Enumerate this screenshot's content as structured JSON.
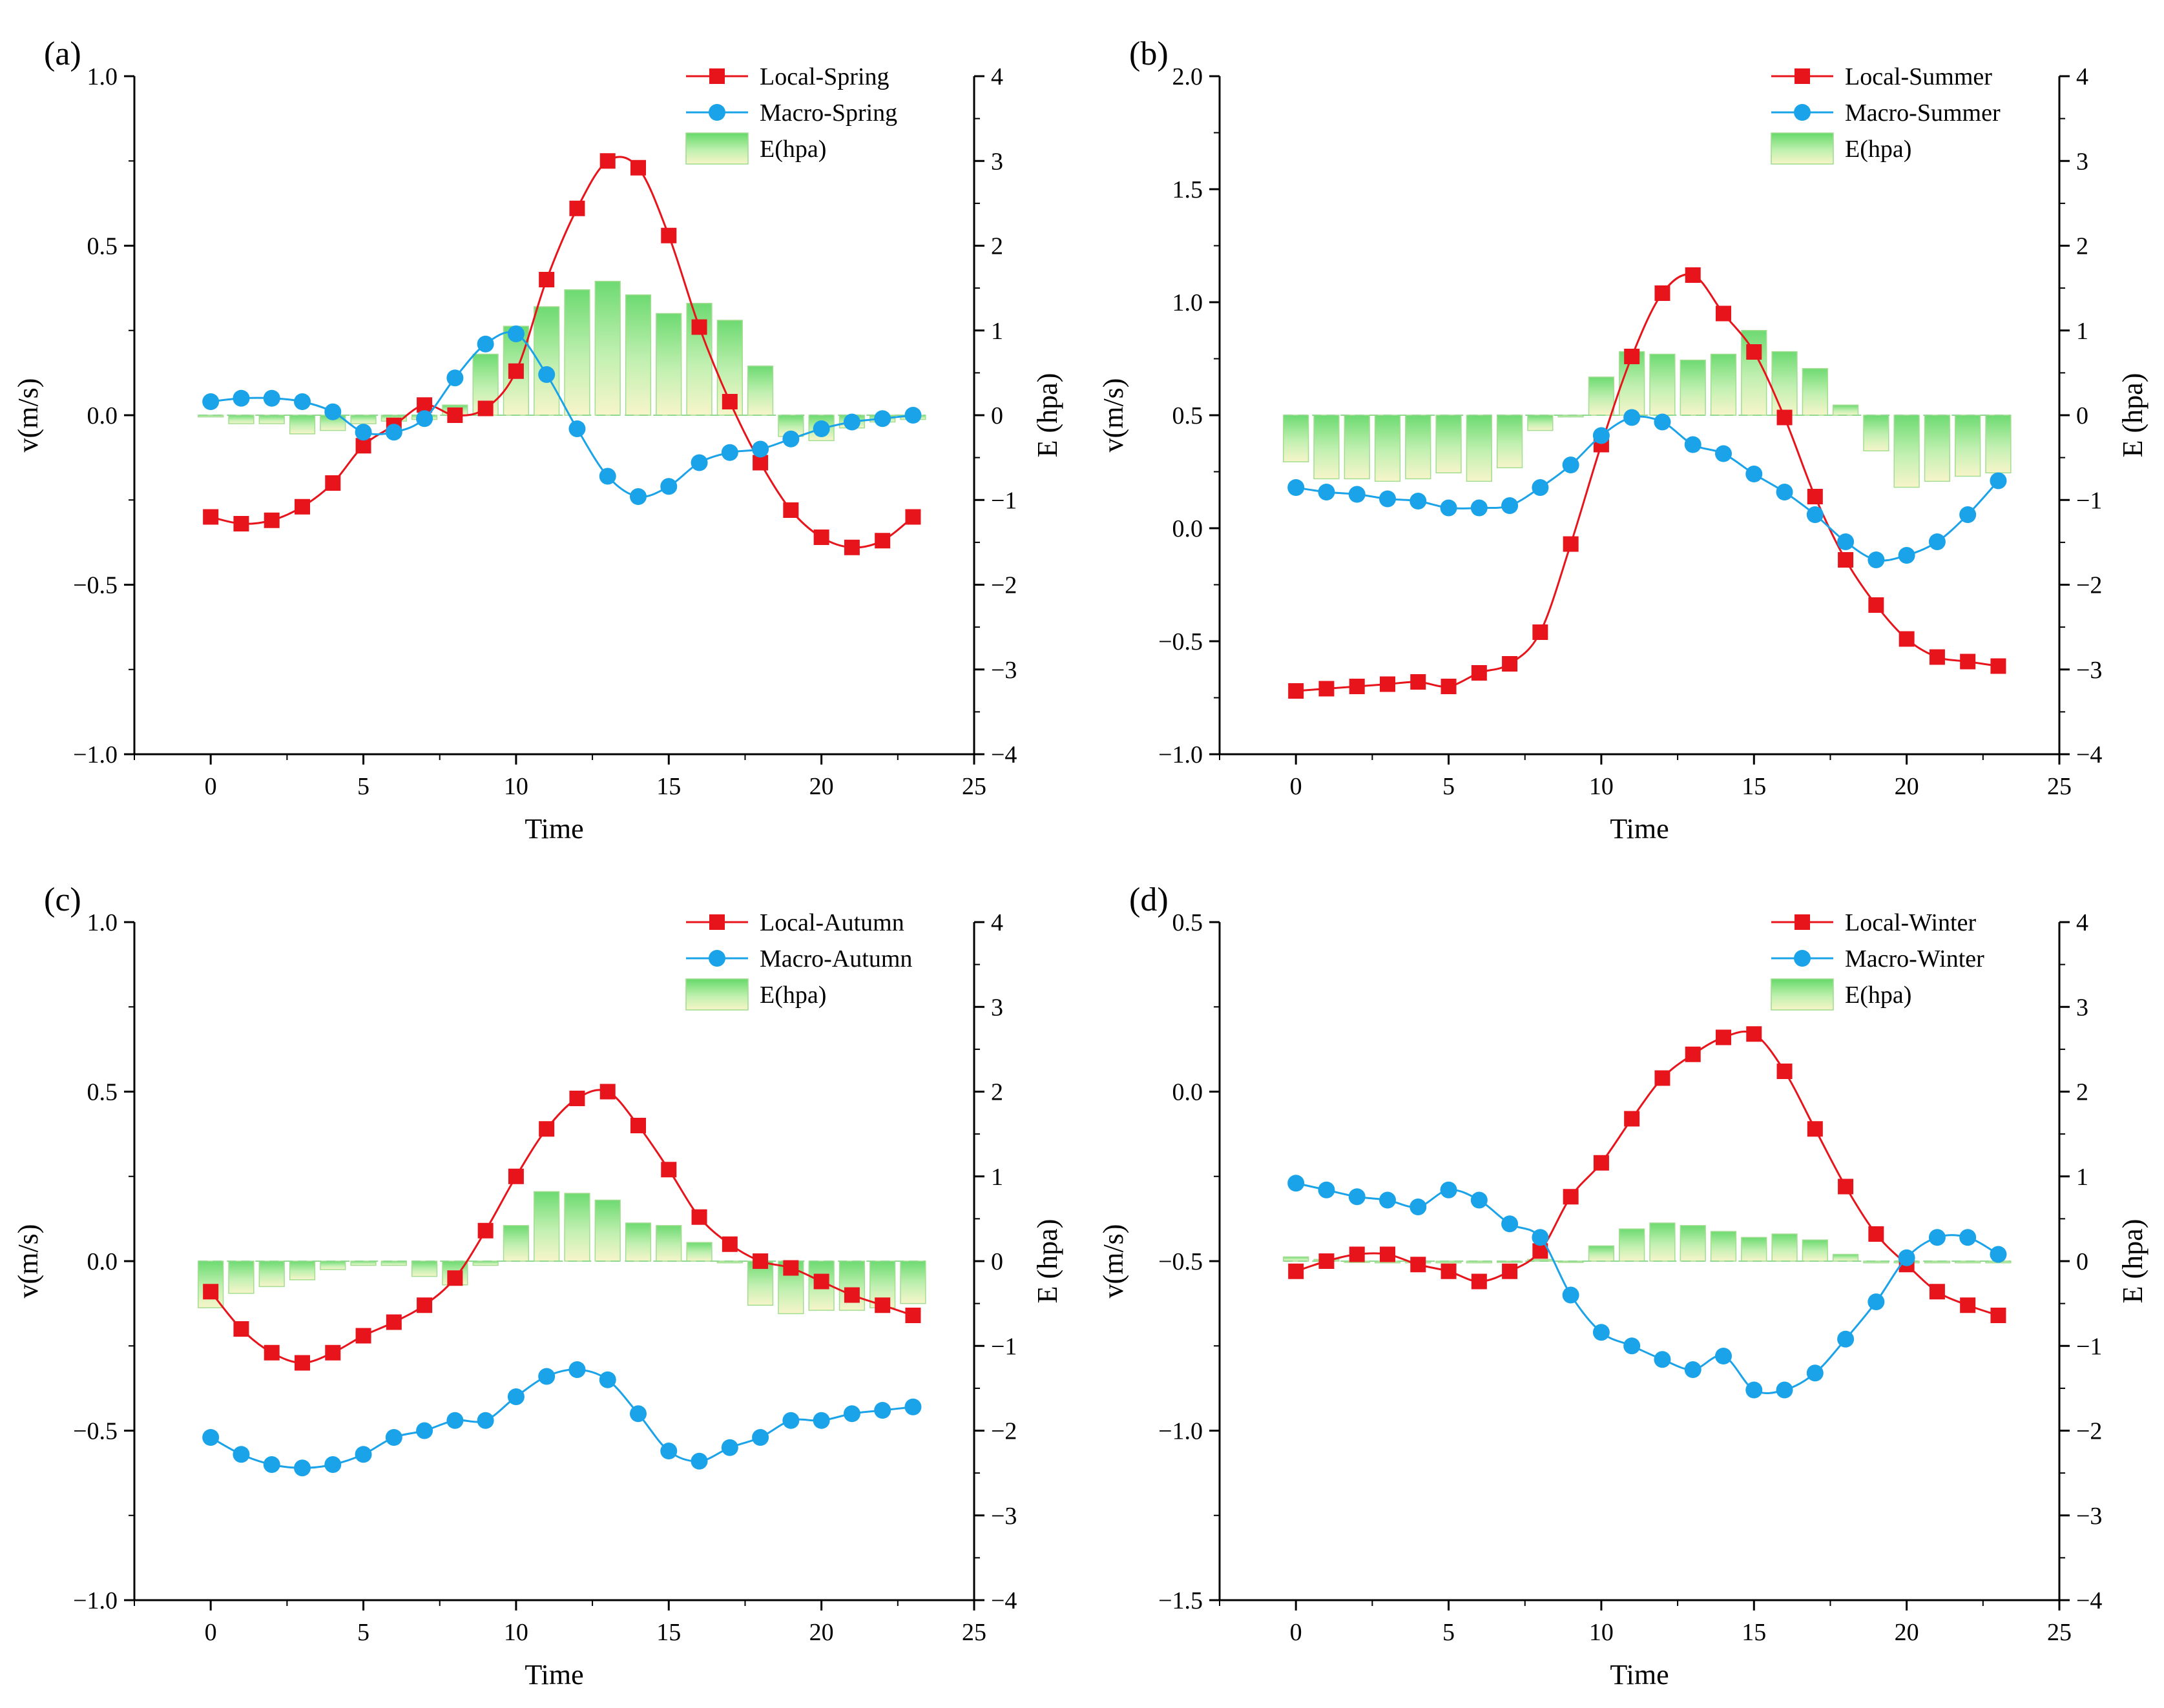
{
  "chart_data": [
    {
      "type": "line",
      "panel": "(a)",
      "xlabel": "Time",
      "ylabel": "v(m/s)",
      "y2label": "E (hpa)",
      "xlim": [
        -2.5,
        25
      ],
      "xticks": [
        0,
        5,
        10,
        15,
        20,
        25
      ],
      "ylim": [
        -1.0,
        1.0
      ],
      "yticks": [
        -1.0,
        -0.5,
        0.0,
        0.5,
        1.0
      ],
      "ytick_labels": [
        "−1.0",
        "−0.5",
        "0.0",
        "0.5",
        "1.0"
      ],
      "y2lim": [
        -4,
        4
      ],
      "y2ticks": [
        -4,
        -3,
        -2,
        -1,
        0,
        1,
        2,
        3,
        4
      ],
      "y2tick_labels": [
        "−4",
        "−3",
        "−2",
        "−1",
        "0",
        "1",
        "2",
        "3",
        "4"
      ],
      "bar_base": 0.0,
      "x": [
        0,
        1,
        2,
        3,
        4,
        5,
        6,
        7,
        8,
        9,
        10,
        11,
        12,
        13,
        14,
        15,
        16,
        17,
        18,
        19,
        20,
        21,
        22,
        23
      ],
      "series": [
        {
          "name": "Local-Spring",
          "color": "#e8141b",
          "marker": "square",
          "values": [
            -0.3,
            -0.32,
            -0.31,
            -0.27,
            -0.2,
            -0.09,
            -0.03,
            0.03,
            0.0,
            0.02,
            0.13,
            0.4,
            0.61,
            0.75,
            0.73,
            0.53,
            0.26,
            0.04,
            -0.14,
            -0.28,
            -0.36,
            -0.39,
            -0.37,
            -0.3
          ]
        },
        {
          "name": "Macro-Spring",
          "color": "#1aa3e8",
          "marker": "circle",
          "values": [
            0.04,
            0.05,
            0.05,
            0.04,
            0.01,
            -0.05,
            -0.05,
            -0.01,
            0.11,
            0.21,
            0.24,
            0.12,
            -0.04,
            -0.18,
            -0.24,
            -0.21,
            -0.14,
            -0.11,
            -0.1,
            -0.07,
            -0.04,
            -0.02,
            -0.01,
            0.0
          ]
        },
        {
          "name": "E(hpa)",
          "color": "#5fd35f",
          "marker": "bar",
          "values": [
            -0.02,
            -0.1,
            -0.1,
            -0.22,
            -0.18,
            -0.1,
            -0.07,
            -0.05,
            0.12,
            0.72,
            1.05,
            1.28,
            1.48,
            1.58,
            1.42,
            1.2,
            1.32,
            1.12,
            0.58,
            -0.25,
            -0.3,
            -0.15,
            -0.08,
            -0.05
          ]
        }
      ],
      "legend": [
        "Local-Spring",
        "Macro-Spring",
        "E(hpa)"
      ],
      "legend_position": "top-right"
    },
    {
      "type": "line",
      "panel": "(b)",
      "xlabel": "Time",
      "ylabel": "v(m/s)",
      "y2label": "E (hpa)",
      "xlim": [
        -2.5,
        25
      ],
      "xticks": [
        0,
        5,
        10,
        15,
        20,
        25
      ],
      "ylim": [
        -1.0,
        2.0
      ],
      "yticks": [
        -1.0,
        -0.5,
        0.0,
        0.5,
        1.0,
        1.5,
        2.0
      ],
      "ytick_labels": [
        "−1.0",
        "−0.5",
        "0.0",
        "0.5",
        "1.0",
        "1.5",
        "2.0"
      ],
      "y2lim": [
        -4,
        4
      ],
      "y2ticks": [
        -4,
        -3,
        -2,
        -1,
        0,
        1,
        2,
        3,
        4
      ],
      "y2tick_labels": [
        "−4",
        "−3",
        "−2",
        "−1",
        "0",
        "1",
        "2",
        "3",
        "4"
      ],
      "bar_base": 0.0,
      "x": [
        0,
        1,
        2,
        3,
        4,
        5,
        6,
        7,
        8,
        9,
        10,
        11,
        12,
        13,
        14,
        15,
        16,
        17,
        18,
        19,
        20,
        21,
        22,
        23
      ],
      "series": [
        {
          "name": "Local-Summer",
          "color": "#e8141b",
          "marker": "square",
          "values": [
            -0.72,
            -0.71,
            -0.7,
            -0.69,
            -0.68,
            -0.7,
            -0.64,
            -0.6,
            -0.46,
            -0.07,
            0.37,
            0.76,
            1.04,
            1.12,
            0.95,
            0.78,
            0.49,
            0.14,
            -0.14,
            -0.34,
            -0.49,
            -0.57,
            -0.59,
            -0.61
          ]
        },
        {
          "name": "Macro-Summer",
          "color": "#1aa3e8",
          "marker": "circle",
          "values": [
            0.18,
            0.16,
            0.15,
            0.13,
            0.12,
            0.09,
            0.09,
            0.1,
            0.18,
            0.28,
            0.41,
            0.49,
            0.47,
            0.37,
            0.33,
            0.24,
            0.16,
            0.06,
            -0.06,
            -0.14,
            -0.12,
            -0.06,
            0.06,
            0.21
          ]
        },
        {
          "name": "E(hpa)",
          "color": "#5fd35f",
          "marker": "bar",
          "values": [
            -0.55,
            -0.75,
            -0.75,
            -0.78,
            -0.75,
            -0.68,
            -0.78,
            -0.62,
            -0.18,
            -0.02,
            0.45,
            0.75,
            0.72,
            0.65,
            0.72,
            1.0,
            0.75,
            0.55,
            0.12,
            -0.42,
            -0.85,
            -0.78,
            -0.72,
            -0.68
          ]
        }
      ],
      "legend": [
        "Local-Summer",
        "Macro-Summer",
        "E(hpa)"
      ],
      "legend_position": "top-right"
    },
    {
      "type": "line",
      "panel": "(c)",
      "xlabel": "Time",
      "ylabel": "v(m/s)",
      "y2label": "E (hpa)",
      "xlim": [
        -2.5,
        25
      ],
      "xticks": [
        0,
        5,
        10,
        15,
        20,
        25
      ],
      "ylim": [
        -1.0,
        1.0
      ],
      "yticks": [
        -1.0,
        -0.5,
        0.0,
        0.5,
        1.0
      ],
      "ytick_labels": [
        "−1.0",
        "−0.5",
        "0.0",
        "0.5",
        "1.0"
      ],
      "y2lim": [
        -4,
        4
      ],
      "y2ticks": [
        -4,
        -3,
        -2,
        -1,
        0,
        1,
        2,
        3,
        4
      ],
      "y2tick_labels": [
        "−4",
        "−3",
        "−2",
        "−1",
        "0",
        "1",
        "2",
        "3",
        "4"
      ],
      "bar_base": 0.0,
      "x": [
        0,
        1,
        2,
        3,
        4,
        5,
        6,
        7,
        8,
        9,
        10,
        11,
        12,
        13,
        14,
        15,
        16,
        17,
        18,
        19,
        20,
        21,
        22,
        23
      ],
      "series": [
        {
          "name": "Local-Autumn",
          "color": "#e8141b",
          "marker": "square",
          "values": [
            -0.09,
            -0.2,
            -0.27,
            -0.3,
            -0.27,
            -0.22,
            -0.18,
            -0.13,
            -0.05,
            0.09,
            0.25,
            0.39,
            0.48,
            0.5,
            0.4,
            0.27,
            0.13,
            0.05,
            0.0,
            -0.02,
            -0.06,
            -0.1,
            -0.13,
            -0.16
          ]
        },
        {
          "name": "Macro-Autumn",
          "color": "#1aa3e8",
          "marker": "circle",
          "values": [
            -0.52,
            -0.57,
            -0.6,
            -0.61,
            -0.6,
            -0.57,
            -0.52,
            -0.5,
            -0.47,
            -0.47,
            -0.4,
            -0.34,
            -0.32,
            -0.35,
            -0.45,
            -0.56,
            -0.59,
            -0.55,
            -0.52,
            -0.47,
            -0.47,
            -0.45,
            -0.44,
            -0.43
          ]
        },
        {
          "name": "E(hpa)",
          "color": "#5fd35f",
          "marker": "bar",
          "values": [
            -0.55,
            -0.38,
            -0.3,
            -0.22,
            -0.1,
            -0.05,
            -0.05,
            -0.18,
            -0.28,
            -0.05,
            0.42,
            0.82,
            0.8,
            0.72,
            0.45,
            0.42,
            0.22,
            -0.02,
            -0.52,
            -0.62,
            -0.58,
            -0.58,
            -0.55,
            -0.5
          ]
        }
      ],
      "legend": [
        "Local-Autumn",
        "Macro-Autumn",
        "E(hpa)"
      ],
      "legend_position": "top-right"
    },
    {
      "type": "line",
      "panel": "(d)",
      "xlabel": "Time",
      "ylabel": "v(m/s)",
      "y2label": "E (hpa)",
      "xlim": [
        -2.5,
        25
      ],
      "xticks": [
        0,
        5,
        10,
        15,
        20,
        25
      ],
      "ylim": [
        -1.5,
        0.5
      ],
      "yticks": [
        -1.5,
        -1.0,
        -0.5,
        0.0,
        0.5
      ],
      "ytick_labels": [
        "−1.5",
        "−1.0",
        "−0.5",
        "0.0",
        "0.5"
      ],
      "y2lim": [
        -4,
        4
      ],
      "y2ticks": [
        -4,
        -3,
        -2,
        -1,
        0,
        1,
        2,
        3,
        4
      ],
      "y2tick_labels": [
        "−4",
        "−3",
        "−2",
        "−1",
        "0",
        "1",
        "2",
        "3",
        "4"
      ],
      "bar_base": 0.0,
      "x": [
        0,
        1,
        2,
        3,
        4,
        5,
        6,
        7,
        8,
        9,
        10,
        11,
        12,
        13,
        14,
        15,
        16,
        17,
        18,
        19,
        20,
        21,
        22,
        23
      ],
      "series": [
        {
          "name": "Local-Winter",
          "color": "#e8141b",
          "marker": "square",
          "values": [
            -0.53,
            -0.5,
            -0.48,
            -0.48,
            -0.51,
            -0.53,
            -0.56,
            -0.53,
            -0.47,
            -0.31,
            -0.21,
            -0.08,
            0.04,
            0.11,
            0.16,
            0.17,
            0.06,
            -0.11,
            -0.28,
            -0.42,
            -0.51,
            -0.59,
            -0.63,
            -0.66
          ]
        },
        {
          "name": "Macro-Winter",
          "color": "#1aa3e8",
          "marker": "circle",
          "values": [
            -0.27,
            -0.29,
            -0.31,
            -0.32,
            -0.34,
            -0.29,
            -0.32,
            -0.39,
            -0.43,
            -0.6,
            -0.71,
            -0.75,
            -0.79,
            -0.82,
            -0.78,
            -0.88,
            -0.88,
            -0.83,
            -0.73,
            -0.62,
            -0.49,
            -0.43,
            -0.43,
            -0.48
          ]
        },
        {
          "name": "E(hpa)",
          "color": "#5fd35f",
          "marker": "bar",
          "values": [
            0.05,
            0.02,
            0.0,
            -0.02,
            -0.02,
            -0.02,
            -0.02,
            0.0,
            0.02,
            0.0,
            0.18,
            0.38,
            0.45,
            0.42,
            0.35,
            0.28,
            0.32,
            0.25,
            0.08,
            -0.02,
            -0.02,
            -0.02,
            -0.02,
            -0.02
          ]
        }
      ],
      "legend": [
        "Local-Winter",
        "Macro-Winter",
        "E(hpa)"
      ],
      "legend_position": "top-right"
    }
  ]
}
